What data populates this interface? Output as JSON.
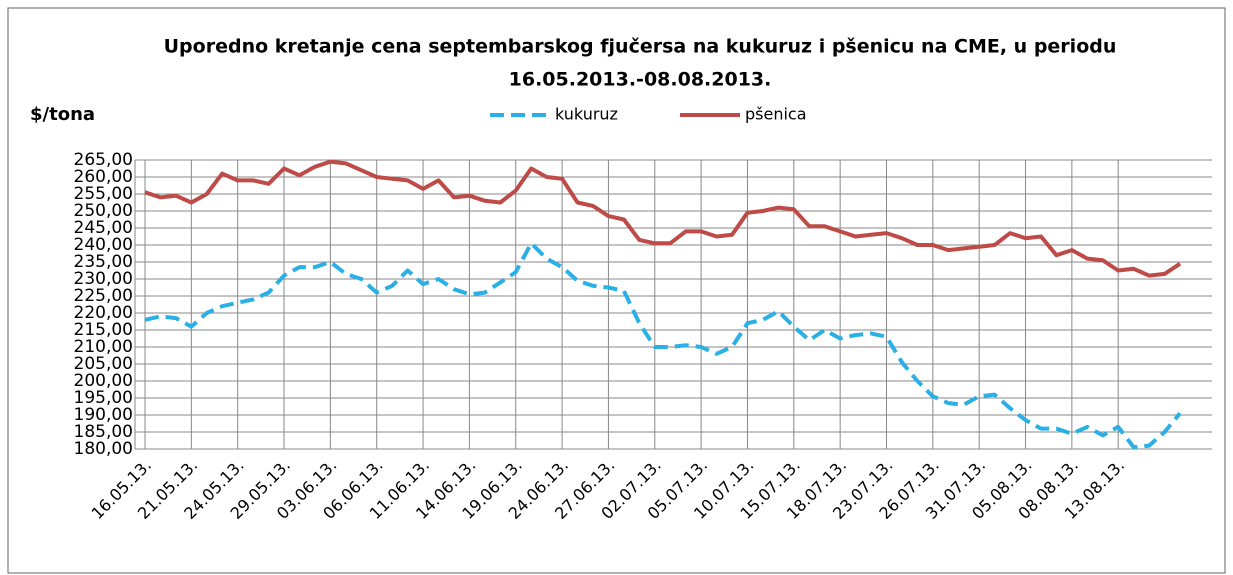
{
  "chart_data": {
    "type": "line",
    "title": "Uporedno kretanje cena septembarskog fjučersa na kukuruz i pšenicu na CME, u periodu",
    "subtitle": "16.05.2013.-08.08.2013.",
    "y_label": "$/tona",
    "categories": [
      "16.05.13.",
      null,
      null,
      "21.05.13.",
      null,
      null,
      "24.05.13.",
      null,
      null,
      "29.05.13.",
      null,
      null,
      "03.06.13.",
      null,
      null,
      "06.06.13.",
      null,
      null,
      "11.06.13.",
      null,
      null,
      "14.06.13.",
      null,
      null,
      "19.06.13.",
      null,
      null,
      "24.06.13.",
      null,
      null,
      "27.06.13.",
      null,
      null,
      "02.07.13.",
      null,
      null,
      "05.07.13.",
      null,
      null,
      "10.07.13.",
      null,
      null,
      "15.07.13.",
      null,
      null,
      "18.07.13.",
      null,
      null,
      "23.07.13.",
      null,
      null,
      "26.07.13.",
      null,
      null,
      "31.07.13.",
      null,
      null,
      "05.08.13.",
      null,
      null,
      "08.08.13.",
      null,
      null,
      "13.08.13.",
      null,
      null,
      null,
      null
    ],
    "series": [
      {
        "name": "kukuruz",
        "color": "#2ab0e6",
        "dashed": true,
        "values": [
          218,
          219,
          218.5,
          216,
          220,
          222,
          223,
          224,
          226,
          231,
          233.5,
          233.5,
          235,
          231.5,
          230,
          226,
          228,
          232.5,
          228.5,
          230,
          227,
          225.5,
          226,
          229,
          232,
          240.5,
          236,
          233.5,
          229.5,
          228,
          227.5,
          226.5,
          217,
          210,
          210,
          210.5,
          210,
          208,
          210,
          217,
          218,
          220.5,
          216,
          212,
          215,
          212.5,
          213.5,
          214,
          213,
          205.5,
          200,
          195.5,
          193.5,
          193,
          195.5,
          196,
          192,
          188.5,
          186,
          186,
          184.5,
          186.5,
          184,
          186.5,
          180.5,
          181,
          185,
          190.5
        ]
      },
      {
        "name": "pšenica",
        "color": "#be4b48",
        "dashed": false,
        "values": [
          255.5,
          254,
          254.5,
          252.5,
          255,
          261,
          259,
          259,
          258,
          262.5,
          260.5,
          263,
          264.5,
          264,
          262,
          260,
          259.5,
          259,
          256.5,
          259,
          254,
          254.5,
          253,
          252.5,
          256,
          262.5,
          260,
          259.5,
          252.5,
          251.5,
          248.5,
          247.5,
          241.5,
          240.5,
          240.5,
          244,
          244,
          242.5,
          243,
          249.5,
          250,
          251,
          250.5,
          245.5,
          245.5,
          244,
          242.5,
          243,
          243.5,
          242,
          240,
          240,
          238.5,
          239,
          239.5,
          240,
          243.5,
          242,
          242.5,
          237,
          238.5,
          236,
          235.5,
          232.5,
          233,
          231,
          231.5,
          234.5
        ]
      }
    ],
    "ylim": [
      180,
      265
    ],
    "yticks": [
      {
        "value": 180,
        "label": "180,00"
      },
      {
        "value": 185,
        "label": "185,00"
      },
      {
        "value": 190,
        "label": "190,00"
      },
      {
        "value": 195,
        "label": "195,00"
      },
      {
        "value": 200,
        "label": "200,00"
      },
      {
        "value": 205,
        "label": "205,00"
      },
      {
        "value": 210,
        "label": "210,00"
      },
      {
        "value": 215,
        "label": "215,00"
      },
      {
        "value": 220,
        "label": "220,00"
      },
      {
        "value": 225,
        "label": "225,00"
      },
      {
        "value": 230,
        "label": "230,00"
      },
      {
        "value": 235,
        "label": "235,00"
      },
      {
        "value": 240,
        "label": "240,00"
      },
      {
        "value": 245,
        "label": "245,00"
      },
      {
        "value": 250,
        "label": "250,00"
      },
      {
        "value": 255,
        "label": "255,00"
      },
      {
        "value": 260,
        "label": "260,00"
      },
      {
        "value": 265,
        "label": "265,00"
      }
    ],
    "grid": true,
    "legend": "top"
  }
}
